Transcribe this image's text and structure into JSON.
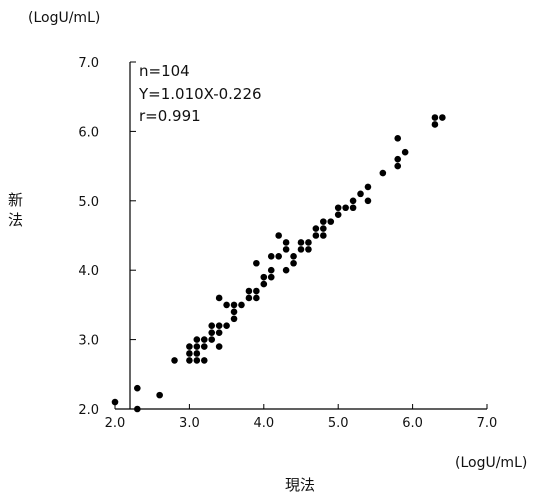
{
  "chart_data": {
    "type": "scatter",
    "x_unit": "(LogU/mL)",
    "y_unit": "(LogU/mL)",
    "xlabel": "現法",
    "ylabel": "新法",
    "xlim": [
      2.0,
      7.0
    ],
    "ylim": [
      2.0,
      7.0
    ],
    "x_ticks": [
      "2.0",
      "3.0",
      "4.0",
      "5.0",
      "6.0",
      "7.0"
    ],
    "y_ticks": [
      "2.0",
      "3.0",
      "4.0",
      "5.0",
      "6.0",
      "7.0"
    ],
    "grid": false,
    "annotations": [
      "n=104",
      "Y=1.010X-0.226",
      "r=0.991"
    ],
    "series": [
      {
        "color": "#000000",
        "points": [
          [
            2.0,
            2.1
          ],
          [
            2.3,
            2.0
          ],
          [
            2.3,
            2.3
          ],
          [
            2.6,
            2.2
          ],
          [
            2.8,
            2.7
          ],
          [
            3.0,
            2.7
          ],
          [
            3.0,
            2.8
          ],
          [
            3.0,
            2.9
          ],
          [
            3.1,
            2.7
          ],
          [
            3.1,
            2.8
          ],
          [
            3.1,
            2.9
          ],
          [
            3.1,
            3.0
          ],
          [
            3.2,
            2.7
          ],
          [
            3.2,
            2.9
          ],
          [
            3.2,
            3.0
          ],
          [
            3.3,
            3.0
          ],
          [
            3.3,
            3.1
          ],
          [
            3.3,
            3.2
          ],
          [
            3.4,
            2.9
          ],
          [
            3.4,
            3.1
          ],
          [
            3.4,
            3.2
          ],
          [
            3.4,
            3.6
          ],
          [
            3.5,
            3.2
          ],
          [
            3.5,
            3.5
          ],
          [
            3.6,
            3.3
          ],
          [
            3.6,
            3.4
          ],
          [
            3.6,
            3.5
          ],
          [
            3.7,
            3.5
          ],
          [
            3.8,
            3.6
          ],
          [
            3.8,
            3.7
          ],
          [
            3.9,
            3.6
          ],
          [
            3.9,
            3.7
          ],
          [
            3.9,
            4.1
          ],
          [
            4.0,
            3.8
          ],
          [
            4.0,
            3.9
          ],
          [
            4.1,
            3.9
          ],
          [
            4.1,
            4.0
          ],
          [
            4.1,
            4.2
          ],
          [
            4.2,
            4.2
          ],
          [
            4.2,
            4.5
          ],
          [
            4.3,
            4.0
          ],
          [
            4.3,
            4.3
          ],
          [
            4.3,
            4.4
          ],
          [
            4.4,
            4.1
          ],
          [
            4.4,
            4.2
          ],
          [
            4.5,
            4.3
          ],
          [
            4.5,
            4.4
          ],
          [
            4.6,
            4.3
          ],
          [
            4.6,
            4.4
          ],
          [
            4.7,
            4.5
          ],
          [
            4.7,
            4.6
          ],
          [
            4.8,
            4.5
          ],
          [
            4.8,
            4.6
          ],
          [
            4.8,
            4.7
          ],
          [
            4.9,
            4.7
          ],
          [
            5.0,
            4.8
          ],
          [
            5.0,
            4.9
          ],
          [
            5.1,
            4.9
          ],
          [
            5.2,
            4.9
          ],
          [
            5.2,
            5.0
          ],
          [
            5.3,
            5.1
          ],
          [
            5.4,
            5.0
          ],
          [
            5.4,
            5.2
          ],
          [
            5.6,
            5.4
          ],
          [
            5.8,
            5.5
          ],
          [
            5.8,
            5.6
          ],
          [
            5.8,
            5.9
          ],
          [
            5.9,
            5.7
          ],
          [
            6.3,
            6.1
          ],
          [
            6.3,
            6.2
          ],
          [
            6.4,
            6.2
          ]
        ]
      }
    ]
  }
}
